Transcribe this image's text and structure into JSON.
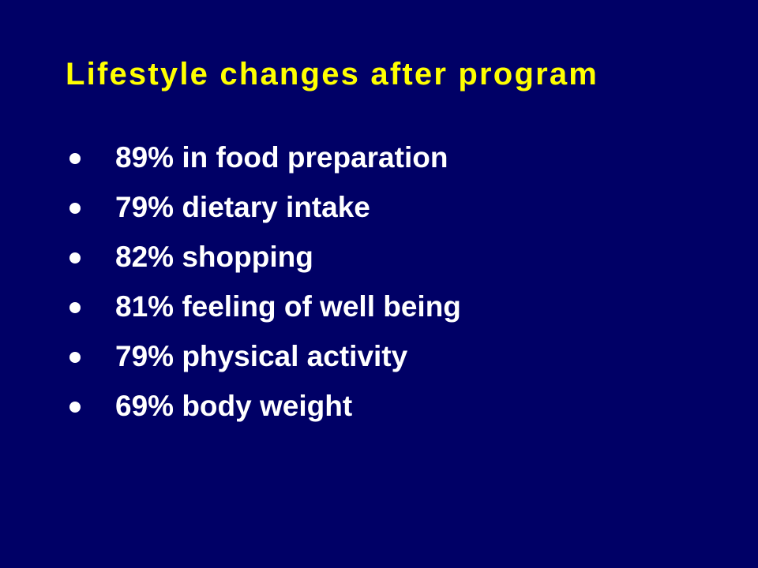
{
  "title": "Lifestyle changes after program",
  "bullets": [
    "89% in food preparation",
    "79% dietary intake",
    "82% shopping",
    "81% feeling of well being",
    "79% physical activity",
    "69% body weight"
  ]
}
